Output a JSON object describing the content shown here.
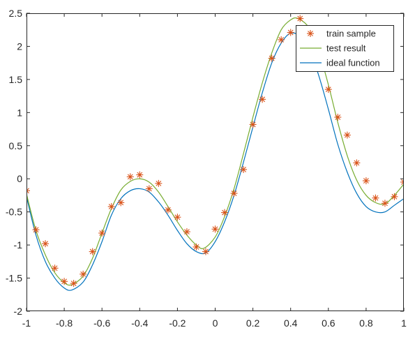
{
  "chart_data": {
    "type": "line",
    "title": "",
    "xlabel": "",
    "ylabel": "",
    "xlim": [
      -1,
      1
    ],
    "ylim": [
      -2,
      2.5
    ],
    "xticks": [
      "-1",
      "-0.8",
      "-0.6",
      "-0.4",
      "-0.2",
      "0",
      "0.2",
      "0.4",
      "0.6",
      "0.8",
      "1"
    ],
    "yticks": [
      "-2",
      "-1.5",
      "-1",
      "-0.5",
      "0",
      "0.5",
      "1",
      "1.5",
      "2",
      "2.5"
    ],
    "grid": false,
    "legend_position": "top-right",
    "legend": [
      {
        "label": "train sample",
        "marker": "asterisk",
        "color": "#D95319"
      },
      {
        "label": "test result",
        "marker": "line",
        "color": "#77AC30"
      },
      {
        "label": "ideal function",
        "marker": "line",
        "color": "#0072BD"
      }
    ],
    "series": [
      {
        "name": "train sample",
        "kind": "scatter",
        "color": "#D95319",
        "x": [
          -1,
          -0.95,
          -0.9,
          -0.85,
          -0.8,
          -0.75,
          -0.7,
          -0.65,
          -0.6,
          -0.55,
          -0.5,
          -0.45,
          -0.4,
          -0.35,
          -0.3,
          -0.25,
          -0.2,
          -0.15,
          -0.1,
          -0.05,
          0,
          0.05,
          0.1,
          0.15,
          0.2,
          0.25,
          0.3,
          0.35,
          0.4,
          0.45,
          0.5,
          0.55,
          0.6,
          0.65,
          0.7,
          0.75,
          0.8,
          0.85,
          0.9,
          0.95,
          1
        ],
        "y": [
          -0.18,
          -0.77,
          -0.98,
          -1.35,
          -1.55,
          -1.58,
          -1.44,
          -1.1,
          -0.82,
          -0.42,
          -0.36,
          0.03,
          0.06,
          -0.15,
          -0.07,
          -0.47,
          -0.58,
          -0.8,
          -1.03,
          -1.1,
          -0.76,
          -0.51,
          -0.22,
          0.14,
          0.82,
          1.2,
          1.82,
          2.1,
          2.21,
          2.42,
          2.22,
          1.73,
          1.35,
          0.93,
          0.66,
          0.24,
          -0.03,
          -0.29,
          -0.37,
          -0.27,
          -0.05
        ]
      },
      {
        "name": "test result",
        "kind": "line",
        "color": "#77AC30",
        "x": [
          -1,
          -0.95,
          -0.9,
          -0.85,
          -0.8,
          -0.76,
          -0.7,
          -0.65,
          -0.6,
          -0.55,
          -0.5,
          -0.45,
          -0.4,
          -0.35,
          -0.3,
          -0.25,
          -0.2,
          -0.15,
          -0.1,
          -0.06,
          0,
          0.05,
          0.1,
          0.15,
          0.2,
          0.25,
          0.3,
          0.35,
          0.4,
          0.44,
          0.5,
          0.55,
          0.6,
          0.65,
          0.7,
          0.75,
          0.8,
          0.85,
          0.9,
          0.95,
          1
        ],
        "y": [
          -0.23,
          -0.78,
          -1.15,
          -1.42,
          -1.57,
          -1.6,
          -1.47,
          -1.2,
          -0.82,
          -0.45,
          -0.17,
          -0.04,
          0,
          -0.05,
          -0.2,
          -0.42,
          -0.65,
          -0.85,
          -1,
          -1.05,
          -0.88,
          -0.57,
          -0.15,
          0.38,
          0.93,
          1.45,
          1.9,
          2.25,
          2.4,
          2.42,
          2.27,
          1.92,
          1.42,
          0.85,
          0.35,
          -0.02,
          -0.25,
          -0.36,
          -0.38,
          -0.25,
          -0.08
        ]
      },
      {
        "name": "ideal function",
        "kind": "line",
        "color": "#0072BD",
        "x": [
          -1,
          -0.95,
          -0.9,
          -0.85,
          -0.8,
          -0.76,
          -0.7,
          -0.65,
          -0.6,
          -0.55,
          -0.5,
          -0.45,
          -0.4,
          -0.35,
          -0.3,
          -0.25,
          -0.2,
          -0.15,
          -0.1,
          -0.05,
          0,
          0.05,
          0.1,
          0.15,
          0.2,
          0.25,
          0.3,
          0.35,
          0.4,
          0.45,
          0.5,
          0.55,
          0.6,
          0.65,
          0.7,
          0.75,
          0.8,
          0.85,
          0.9,
          0.95,
          1
        ],
        "y": [
          -0.27,
          -0.85,
          -1.25,
          -1.5,
          -1.65,
          -1.68,
          -1.56,
          -1.3,
          -0.95,
          -0.55,
          -0.3,
          -0.18,
          -0.15,
          -0.2,
          -0.35,
          -0.55,
          -0.78,
          -0.98,
          -1.1,
          -1.12,
          -0.95,
          -0.65,
          -0.25,
          0.25,
          0.78,
          1.3,
          1.75,
          2.05,
          2.2,
          2.15,
          1.95,
          1.55,
          1.05,
          0.52,
          0.1,
          -0.22,
          -0.42,
          -0.5,
          -0.5,
          -0.4,
          -0.3
        ]
      }
    ]
  }
}
